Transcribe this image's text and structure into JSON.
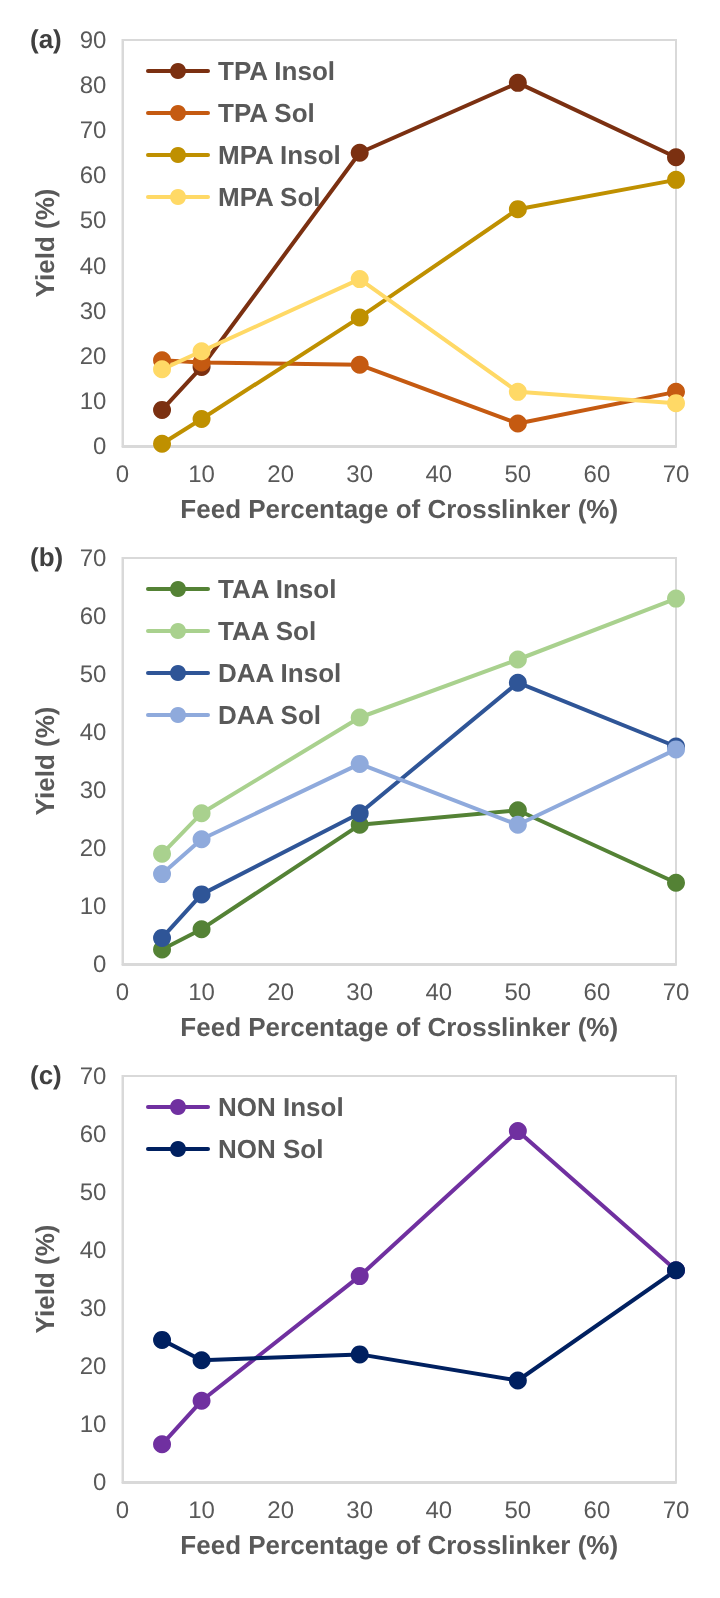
{
  "chart_data": [
    {
      "type": "line",
      "title": "(a)",
      "xlabel": "Feed Percentage of Crosslinker (%)",
      "ylabel": "Yield (%)",
      "x": [
        5,
        10,
        30,
        50,
        70
      ],
      "xlim": [
        0,
        70
      ],
      "xticks": [
        0,
        10,
        20,
        30,
        40,
        50,
        60,
        70
      ],
      "ylim": [
        0,
        90
      ],
      "yticks": [
        0,
        10,
        20,
        30,
        40,
        50,
        60,
        70,
        80,
        90
      ],
      "grid": false,
      "legend": "top left",
      "marker": "circle",
      "line_style": "solid",
      "series": [
        {
          "name": "TPA Insol",
          "color": "#7b3011",
          "values": [
            8,
            17.5,
            65,
            80.5,
            64
          ]
        },
        {
          "name": "TPA Sol",
          "color": "#c55a11",
          "values": [
            19,
            18.5,
            18,
            5,
            12
          ]
        },
        {
          "name": "MPA Insol",
          "color": "#bf9000",
          "values": [
            0.5,
            6,
            28.5,
            52.5,
            59
          ]
        },
        {
          "name": "MPA Sol",
          "color": "#ffd966",
          "values": [
            17,
            21,
            37,
            12,
            9.5
          ]
        }
      ]
    },
    {
      "type": "line",
      "title": "(b)",
      "xlabel": "Feed Percentage of Crosslinker (%)",
      "ylabel": "Yield (%)",
      "x": [
        5,
        10,
        30,
        50,
        70
      ],
      "xlim": [
        0,
        70
      ],
      "xticks": [
        0,
        10,
        20,
        30,
        40,
        50,
        60,
        70
      ],
      "ylim": [
        0,
        70
      ],
      "yticks": [
        0,
        10,
        20,
        30,
        40,
        50,
        60,
        70
      ],
      "grid": false,
      "legend": "top left",
      "marker": "circle",
      "line_style": "solid",
      "series": [
        {
          "name": "TAA Insol",
          "color": "#548235",
          "values": [
            2.5,
            6,
            24,
            26.5,
            14
          ]
        },
        {
          "name": "TAA Sol",
          "color": "#a9d18e",
          "values": [
            19,
            26,
            42.5,
            52.5,
            63
          ]
        },
        {
          "name": "DAA Insol",
          "color": "#2f5597",
          "values": [
            4.5,
            12,
            26,
            48.5,
            37.5
          ]
        },
        {
          "name": "DAA Sol",
          "color": "#8faadc",
          "values": [
            15.5,
            21.5,
            34.5,
            24,
            37
          ]
        }
      ]
    },
    {
      "type": "line",
      "title": "(c)",
      "xlabel": "Feed Percentage of Crosslinker (%)",
      "ylabel": "Yield (%)",
      "x": [
        5,
        10,
        30,
        50,
        70
      ],
      "xlim": [
        0,
        70
      ],
      "xticks": [
        0,
        10,
        20,
        30,
        40,
        50,
        60,
        70
      ],
      "ylim": [
        0,
        70
      ],
      "yticks": [
        0,
        10,
        20,
        30,
        40,
        50,
        60,
        70
      ],
      "grid": false,
      "legend": "top left",
      "marker": "circle",
      "line_style": "solid",
      "series": [
        {
          "name": "NON Insol",
          "color": "#7030a0",
          "values": [
            6.5,
            14,
            35.5,
            60.5,
            36.5
          ]
        },
        {
          "name": "NON Sol",
          "color": "#002060",
          "values": [
            24.5,
            21,
            22,
            17.5,
            36.5
          ]
        }
      ]
    }
  ]
}
